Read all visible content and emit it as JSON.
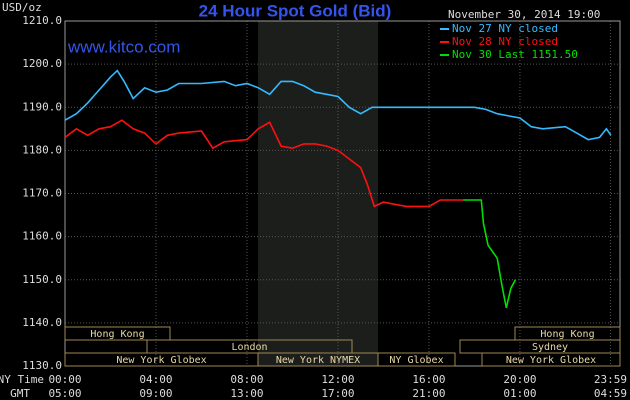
{
  "chart_data": {
    "type": "line",
    "title": "24 Hour Spot Gold (Bid)",
    "source": "www.kitco.com",
    "timestamp": "November 30, 2014 19:00",
    "y_label": "USD/oz",
    "x_label": "NY Time",
    "x2_label": "GMT",
    "x2ticklabels": [
      "05:00",
      "09:00",
      "13:00",
      "17:00",
      "21:00",
      "01:00",
      "04:59"
    ],
    "xlim": [
      0,
      24.4
    ],
    "xticks": [
      {
        "value": 0,
        "label": "00:00"
      },
      {
        "value": 4,
        "label": "04:00"
      },
      {
        "value": 8,
        "label": "08:00"
      },
      {
        "value": 12,
        "label": "12:00"
      },
      {
        "value": 16,
        "label": "16:00"
      },
      {
        "value": 20,
        "label": "20:00"
      },
      {
        "value": 23.98,
        "label": "23:59"
      }
    ],
    "ylim": [
      1130,
      1210
    ],
    "yticks": [
      {
        "value": 1130,
        "label": "1130.0"
      },
      {
        "value": 1140,
        "label": "1140.0"
      },
      {
        "value": 1150,
        "label": "1150.0"
      },
      {
        "value": 1160,
        "label": "1160.0"
      },
      {
        "value": 1170,
        "label": "1170.0"
      },
      {
        "value": 1180,
        "label": "1180.0"
      },
      {
        "value": 1190,
        "label": "1190.0"
      },
      {
        "value": 1200,
        "label": "1200.0"
      },
      {
        "value": 1210,
        "label": "1210.0"
      }
    ],
    "grid": true,
    "series": [
      {
        "name": "Nov 27 NY closed",
        "color": "#33bbff",
        "x": [
          0,
          0.5,
          1,
          1.5,
          2,
          2.3,
          2.6,
          3,
          3.5,
          4,
          4.5,
          5,
          6,
          7,
          7.5,
          8,
          8.5,
          9,
          9.5,
          10,
          10.5,
          11,
          11.5,
          12,
          12.5,
          13,
          13.5,
          14,
          15,
          16,
          17,
          18,
          18.5,
          19,
          19.5,
          20,
          20.5,
          21,
          22,
          22.5,
          23,
          23.5,
          23.8,
          24
        ],
        "values": [
          1187,
          1188.5,
          1191,
          1194,
          1197,
          1198.5,
          1196,
          1192,
          1194.5,
          1193.5,
          1194,
          1195.5,
          1195.5,
          1196,
          1195,
          1195.5,
          1194.5,
          1193,
          1196,
          1196,
          1195,
          1193.5,
          1193,
          1192.5,
          1190,
          1188.5,
          1190,
          1190,
          1190,
          1190,
          1190,
          1190,
          1189.5,
          1188.5,
          1188,
          1187.5,
          1185.5,
          1185,
          1185.5,
          1184,
          1182.5,
          1183,
          1185,
          1183.5
        ]
      },
      {
        "name": "Nov 28 NY closed",
        "color": "#ff1010",
        "x": [
          0,
          0.5,
          1,
          1.5,
          2,
          2.5,
          3,
          3.5,
          4,
          4.5,
          5,
          6,
          6.5,
          7,
          8,
          8.5,
          9,
          9.5,
          10,
          10.5,
          11,
          11.5,
          12,
          12.5,
          13,
          13.3,
          13.6,
          14,
          14.5,
          15,
          16,
          16.5,
          17,
          17.5
        ],
        "values": [
          1183,
          1185,
          1183.5,
          1185,
          1185.5,
          1187,
          1185,
          1184,
          1181.5,
          1183.5,
          1184,
          1184.5,
          1180.5,
          1182,
          1182.5,
          1185,
          1186.5,
          1181,
          1180.5,
          1181.5,
          1181.5,
          1181,
          1180,
          1178,
          1176,
          1172,
          1167,
          1168,
          1167.5,
          1167,
          1167,
          1168.5,
          1168.5,
          1168.5
        ]
      },
      {
        "name": "Nov 30 Last 1151.50",
        "color": "#00e000",
        "x": [
          17.5,
          18.3,
          18.4,
          18.6,
          19,
          19.2,
          19.4,
          19.6,
          19.8
        ],
        "values": [
          1168.5,
          1168.5,
          1163,
          1158,
          1155,
          1149,
          1143.5,
          1148,
          1150
        ]
      }
    ],
    "sessions": [
      {
        "label": "Hong Kong"
      },
      {
        "label": "Hong Kong"
      },
      {
        "label": "London"
      },
      {
        "label": "Sydney"
      },
      {
        "label": "New York Globex"
      },
      {
        "label": "New York NYMEX"
      },
      {
        "label": "NY Globex"
      },
      {
        "label": "New York Globex"
      }
    ]
  }
}
